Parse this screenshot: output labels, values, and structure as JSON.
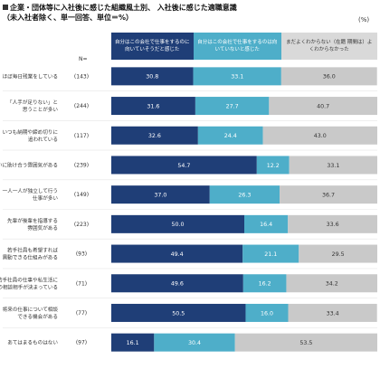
{
  "title_line1": "企業・団体等に入社後に感じた組織風土別、 入社後に感じた適職意識",
  "title_line2": "（未入社者除く、単一回答、単位＝%）",
  "unit": "(%)",
  "n_label": "N=",
  "colors": {
    "s1": "#1f3e77",
    "s2": "#4eaec9",
    "s3": "#c9c9c9",
    "header1": "#1f3e77",
    "header2": "#4eaec9",
    "header3": "#d9d9d9"
  },
  "headers": [
    "自分はこの会社で仕事をするのに向いていそうだと感じた",
    "自分はこの会社で仕事をするのは向いていないと感じた",
    "まだよくわからない（在籍 期間は）よくわからなかった"
  ],
  "chart_data": {
    "type": "bar",
    "orientation": "horizontal",
    "stacked": true,
    "categories": [
      "ほぼ毎日残業をしている",
      "「人手が足りない」と 思うことが多い",
      "いつも納期や締め切りに 追われている",
      "互いに助け合う雰囲気がある",
      "一人一人が独立して行う 仕事が多い",
      "先輩が後輩を指導する 雰囲気がある",
      "若手社員も希望すれば 異動できる仕組みがある",
      "若手社員の仕事や私生活に ついての相談相手が決まっている",
      "将来の仕事について相談 できる機会がある",
      "あてはまるものはない"
    ],
    "n": [
      "(143)",
      "(244)",
      "(117)",
      "(239)",
      "(149)",
      "(223)",
      "(93)",
      "(71)",
      "(77)",
      "(97)"
    ],
    "series": [
      {
        "name": "自分はこの会社で仕事をするのに向いていそうだと感じた",
        "values": [
          30.8,
          31.6,
          32.6,
          54.7,
          37.0,
          50.0,
          49.4,
          49.6,
          50.5,
          16.1
        ]
      },
      {
        "name": "自分はこの会社で仕事をするのは向いていないと感じた",
        "values": [
          33.1,
          27.7,
          24.4,
          12.2,
          26.3,
          16.4,
          21.1,
          16.2,
          16.0,
          30.4
        ]
      },
      {
        "name": "まだよくわからない（在籍 期間は）よくわからなかった",
        "values": [
          36.0,
          40.7,
          43.0,
          33.1,
          36.7,
          33.6,
          29.5,
          34.2,
          33.4,
          53.5
        ]
      }
    ],
    "xlim": [
      0,
      100
    ]
  }
}
